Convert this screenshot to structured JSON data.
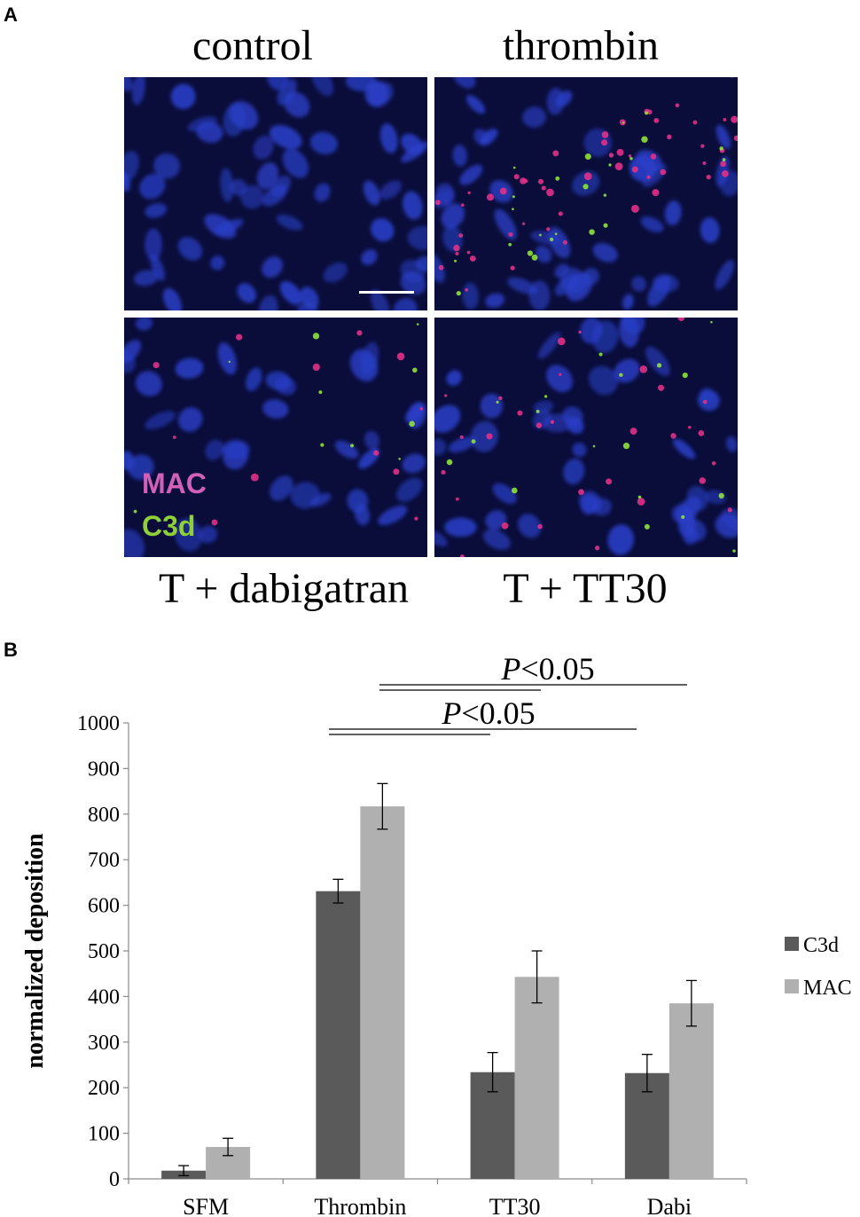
{
  "panel_a": {
    "letter": "A",
    "labels": {
      "control": "control",
      "thrombin": "thrombin",
      "t_dabigatran": "T + dabigatran",
      "t_tt30": "T + TT30"
    },
    "stain_legend": {
      "mac": "MAC",
      "c3d": "C3d"
    },
    "colors": {
      "nuclei": "#2a3fc8",
      "background": "#0a0d3a",
      "mac": "#e0308a",
      "c3d": "#8fe03a",
      "mac_label": "#d060b8",
      "c3d_label": "#8fd03a"
    }
  },
  "panel_b": {
    "letter": "B"
  },
  "chart_data": {
    "type": "bar",
    "categories": [
      "SFM",
      "Thrombin",
      "TT30",
      "Dabi"
    ],
    "series": [
      {
        "name": "C3d",
        "color": "#5a5a5a",
        "values": [
          18,
          631,
          234,
          232
        ],
        "errors": [
          11,
          26,
          43,
          41
        ]
      },
      {
        "name": "MAC",
        "color": "#b0b0b0",
        "values": [
          70,
          817,
          443,
          385
        ],
        "errors": [
          19,
          50,
          57,
          50
        ]
      }
    ],
    "xlabel": "",
    "ylabel": "normalized deposition",
    "ylim": [
      0,
      1000
    ],
    "yticks": [
      "0",
      "100",
      "200",
      "300",
      "400",
      "500",
      "600",
      "700",
      "800",
      "900",
      "1000"
    ],
    "legend_position": "right",
    "annotations": [
      {
        "text_italic": "P",
        "text_rest": "<0.05",
        "from": "Thrombin",
        "to_a": "TT30",
        "to_b": "Dabi"
      },
      {
        "text_italic": "P",
        "text_rest": "<0.05",
        "from": "Thrombin",
        "to_a": "TT30",
        "to_b": "Dabi"
      }
    ]
  }
}
